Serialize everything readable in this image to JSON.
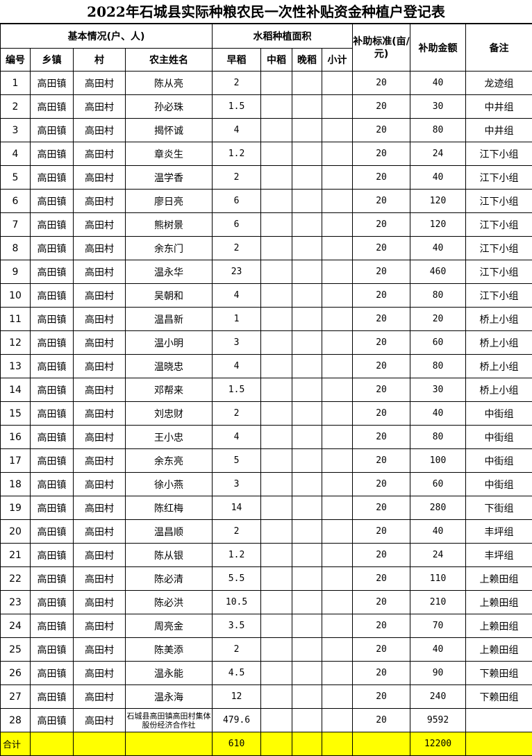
{
  "title": "2022年石城县实际种粮农民一次性补贴资金种植户登记表",
  "headers": {
    "basic_info": "基本情况(户、人)",
    "rice_area": "水稻种植面积",
    "standard": "补助标准(亩/元)",
    "amount": "补助金额",
    "remark": "备注",
    "no": "编号",
    "town": "乡镇",
    "village": "村",
    "name": "农主姓名",
    "early": "早稻",
    "mid": "中稻",
    "late": "晚稻",
    "subtotal": "小计"
  },
  "rows": [
    [
      "1",
      "高田镇",
      "高田村",
      "陈从亮",
      "2",
      "",
      "",
      "",
      "20",
      "40",
      "龙迹组"
    ],
    [
      "2",
      "高田镇",
      "高田村",
      "孙必珠",
      "1.5",
      "",
      "",
      "",
      "20",
      "30",
      "中井组"
    ],
    [
      "3",
      "高田镇",
      "高田村",
      "揭怀诚",
      "4",
      "",
      "",
      "",
      "20",
      "80",
      "中井组"
    ],
    [
      "4",
      "高田镇",
      "高田村",
      "章炎生",
      "1.2",
      "",
      "",
      "",
      "20",
      "24",
      "江下小组"
    ],
    [
      "5",
      "高田镇",
      "高田村",
      "温学香",
      "2",
      "",
      "",
      "",
      "20",
      "40",
      "江下小组"
    ],
    [
      "6",
      "高田镇",
      "高田村",
      "廖日亮",
      "6",
      "",
      "",
      "",
      "20",
      "120",
      "江下小组"
    ],
    [
      "7",
      "高田镇",
      "高田村",
      "熊树景",
      "6",
      "",
      "",
      "",
      "20",
      "120",
      "江下小组"
    ],
    [
      "8",
      "高田镇",
      "高田村",
      "余东门",
      "2",
      "",
      "",
      "",
      "20",
      "40",
      "江下小组"
    ],
    [
      "9",
      "高田镇",
      "高田村",
      "温永华",
      "23",
      "",
      "",
      "",
      "20",
      "460",
      "江下小组"
    ],
    [
      "10",
      "高田镇",
      "高田村",
      "吴朝和",
      "4",
      "",
      "",
      "",
      "20",
      "80",
      "江下小组"
    ],
    [
      "11",
      "高田镇",
      "高田村",
      "温昌新",
      "1",
      "",
      "",
      "",
      "20",
      "20",
      "桥上小组"
    ],
    [
      "12",
      "高田镇",
      "高田村",
      "温小明",
      "3",
      "",
      "",
      "",
      "20",
      "60",
      "桥上小组"
    ],
    [
      "13",
      "高田镇",
      "高田村",
      "温晓忠",
      "4",
      "",
      "",
      "",
      "20",
      "80",
      "桥上小组"
    ],
    [
      "14",
      "高田镇",
      "高田村",
      "邓帮来",
      "1.5",
      "",
      "",
      "",
      "20",
      "30",
      "桥上小组"
    ],
    [
      "15",
      "高田镇",
      "高田村",
      "刘忠财",
      "2",
      "",
      "",
      "",
      "20",
      "40",
      "中街组"
    ],
    [
      "16",
      "高田镇",
      "高田村",
      "王小忠",
      "4",
      "",
      "",
      "",
      "20",
      "80",
      "中街组"
    ],
    [
      "17",
      "高田镇",
      "高田村",
      "余东亮",
      "5",
      "",
      "",
      "",
      "20",
      "100",
      "中街组"
    ],
    [
      "18",
      "高田镇",
      "高田村",
      "徐小燕",
      "3",
      "",
      "",
      "",
      "20",
      "60",
      "中街组"
    ],
    [
      "19",
      "高田镇",
      "高田村",
      "陈红梅",
      "14",
      "",
      "",
      "",
      "20",
      "280",
      "下街组"
    ],
    [
      "20",
      "高田镇",
      "高田村",
      "温昌顺",
      "2",
      "",
      "",
      "",
      "20",
      "40",
      "丰坪组"
    ],
    [
      "21",
      "高田镇",
      "高田村",
      "陈从银",
      "1.2",
      "",
      "",
      "",
      "20",
      "24",
      "丰坪组"
    ],
    [
      "22",
      "高田镇",
      "高田村",
      "陈必清",
      "5.5",
      "",
      "",
      "",
      "20",
      "110",
      "上赖田组"
    ],
    [
      "23",
      "高田镇",
      "高田村",
      "陈必洪",
      "10.5",
      "",
      "",
      "",
      "20",
      "210",
      "上赖田组"
    ],
    [
      "24",
      "高田镇",
      "高田村",
      "周亮金",
      "3.5",
      "",
      "",
      "",
      "20",
      "70",
      "上赖田组"
    ],
    [
      "25",
      "高田镇",
      "高田村",
      "陈美添",
      "2",
      "",
      "",
      "",
      "20",
      "40",
      "上赖田组"
    ],
    [
      "26",
      "高田镇",
      "高田村",
      "温永能",
      "4.5",
      "",
      "",
      "",
      "20",
      "90",
      "下赖田组"
    ],
    [
      "27",
      "高田镇",
      "高田村",
      "温永海",
      "12",
      "",
      "",
      "",
      "20",
      "240",
      "下赖田组"
    ],
    [
      "28",
      "高田镇",
      "高田村",
      "石城县高田镇高田村集体股份经济合作社",
      "479.6",
      "",
      "",
      "",
      "20",
      "9592",
      ""
    ]
  ],
  "total": {
    "label": "合计",
    "early": "610",
    "amount": "12200"
  },
  "colors": {
    "total_highlight": "#ffff00"
  }
}
